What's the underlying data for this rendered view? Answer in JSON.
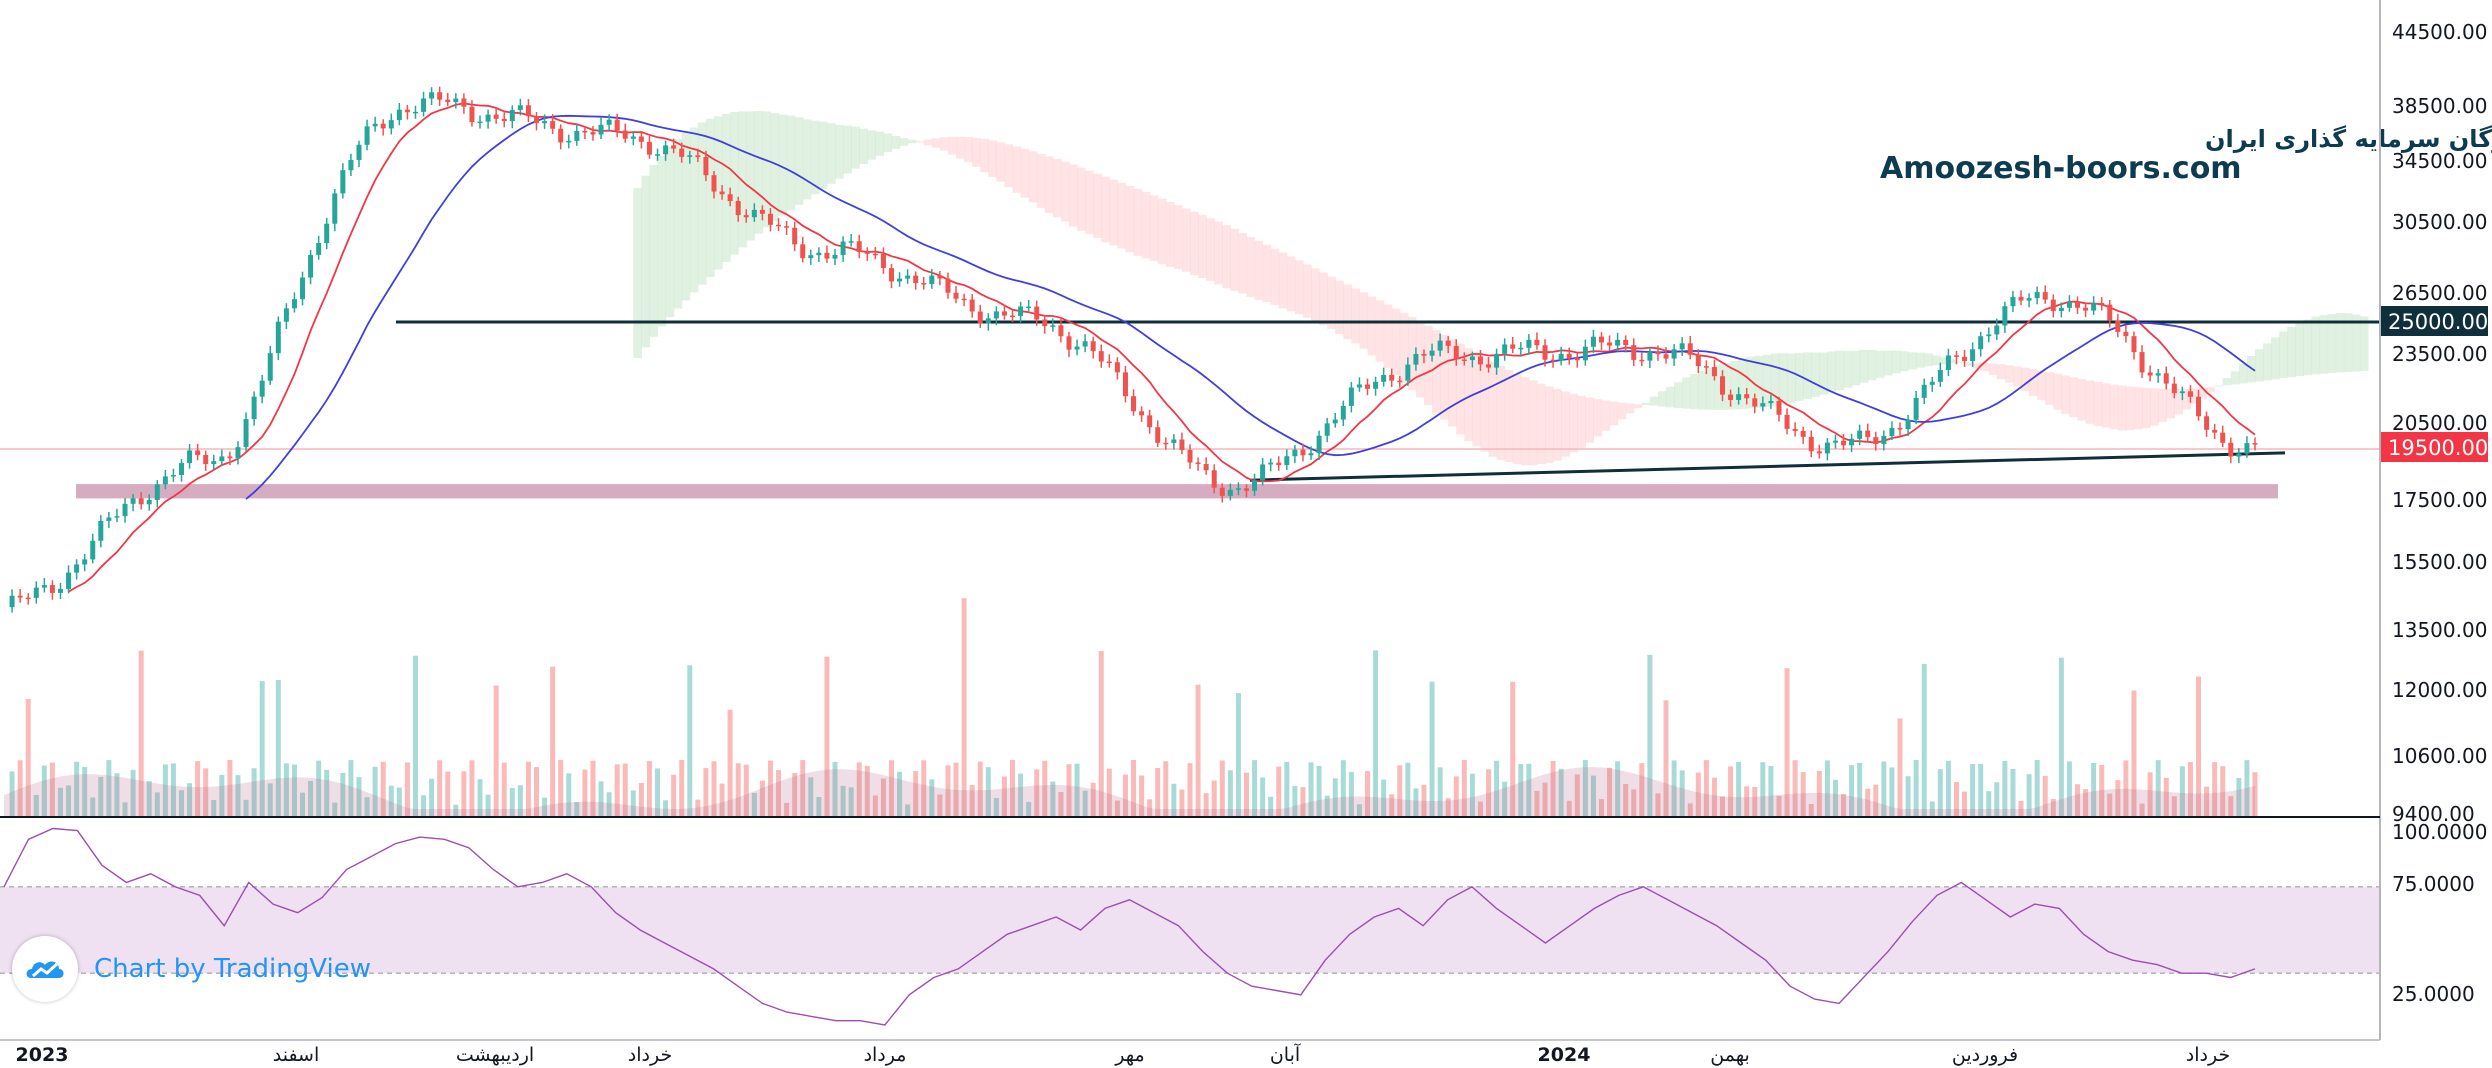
{
  "watermark": {
    "line1": "انجمن خبرگان سرمایه گذاری ایران",
    "line2": "Amoozesh-boors.com"
  },
  "branding": {
    "label": "Chart by TradingView",
    "icon": "tradingview-cloud-icon",
    "color": "#2196f3"
  },
  "price_tags": {
    "resistance": "25000.00",
    "last_price": "19500.00"
  },
  "colors": {
    "up": "#26a69a",
    "down": "#ef5350",
    "ma_fast": "#f23645",
    "ma_slow": "#3f3fe0",
    "level_line": "#0f2f3a",
    "support_zone": "#b5678e",
    "rsi_line": "#9c4fb0",
    "rsi_band": "#efe0f2"
  },
  "chart_data": [
    {
      "type": "candlestick",
      "price_axis_ticks": [
        "44500.00",
        "38500.00",
        "34500.00",
        "30500.00",
        "26500.00",
        "23500.00",
        "20500.00",
        "17500.00",
        "15500.00",
        "13500.00",
        "12000.00",
        "10600.00",
        "9400.00"
      ],
      "x_tick_labels": [
        "2023",
        "اسفند",
        "اردیبهشت",
        "خرداد",
        "مرداد",
        "مهر",
        "آبان",
        "2024",
        "بهمن",
        "فروردین",
        "خرداد"
      ],
      "key_points": [
        {
          "label": "start",
          "close": 14200
        },
        {
          "label": "اسفند",
          "close": 19000
        },
        {
          "label": "اردیبهشت high",
          "close": 38800
        },
        {
          "label": "خرداد",
          "close": 36500
        },
        {
          "label": "مرداد",
          "close": 29000
        },
        {
          "label": "مهر",
          "close": 25200
        },
        {
          "label": "آبان low",
          "close": 18100
        },
        {
          "label": "2024",
          "close": 23500
        },
        {
          "label": "بهمن",
          "close": 23800
        },
        {
          "label": "low",
          "close": 19600
        },
        {
          "label": "فروردین",
          "close": 26300
        },
        {
          "label": "end",
          "close": 19500
        }
      ],
      "horizontal_levels": [
        {
          "value": 25000
        },
        {
          "value": 19500
        }
      ],
      "support_zone": [
        17600,
        18150
      ],
      "trendline": {
        "from": 18300,
        "to": 19350
      },
      "indicators": [
        "Ichimoku cloud",
        "Moving average fast",
        "Moving average slow",
        "Volume"
      ]
    },
    {
      "type": "line",
      "indicator": "RSI",
      "axis_ticks": [
        "100.0000",
        "75.0000",
        "25.0000"
      ],
      "band": [
        30,
        70
      ],
      "values": [
        70,
        92,
        97,
        96,
        80,
        72,
        76,
        70,
        66,
        52,
        72,
        62,
        58,
        65,
        78,
        84,
        90,
        93,
        92,
        88,
        78,
        70,
        72,
        76,
        70,
        58,
        50,
        44,
        38,
        32,
        24,
        16,
        12,
        10,
        8,
        8,
        6,
        20,
        28,
        32,
        40,
        48,
        52,
        56,
        50,
        60,
        64,
        58,
        52,
        40,
        30,
        24,
        22,
        20,
        36,
        48,
        56,
        60,
        52,
        64,
        70,
        60,
        52,
        44,
        52,
        60,
        66,
        70,
        64,
        58,
        52,
        44,
        36,
        24,
        18,
        16,
        28,
        40,
        54,
        66,
        72,
        64,
        56,
        62,
        60,
        48,
        40,
        36,
        34,
        30,
        30,
        28,
        32
      ]
    }
  ]
}
